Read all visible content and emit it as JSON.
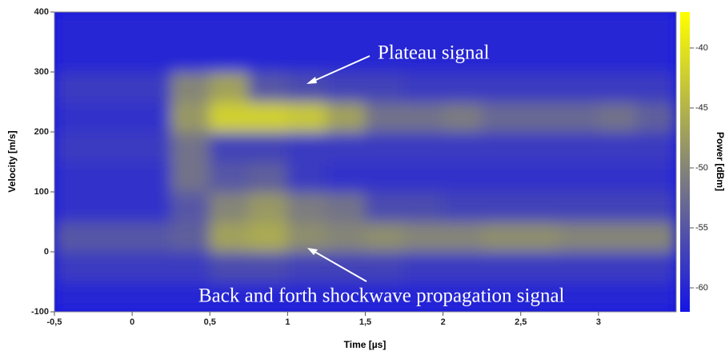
{
  "chart_data": {
    "type": "heatmap",
    "xlabel": "Time [µs]",
    "ylabel": "Velocity [m/s]",
    "colorbar_label": "Power [dBm]",
    "annotations": [
      "Plateau signal",
      "Back and forth shockwave propagation signal"
    ],
    "xlim": [
      -0.5,
      3.5
    ],
    "ylim": [
      -100,
      400
    ],
    "xticks": [
      {
        "value": -0.5,
        "label": "-0,5"
      },
      0,
      {
        "value": 0.5,
        "label": "0,5"
      },
      1,
      {
        "value": 1.5,
        "label": "1,5"
      },
      2,
      {
        "value": 2.5,
        "label": "2,5"
      },
      3
    ],
    "yticks": [
      -100,
      0,
      100,
      200,
      300,
      400
    ],
    "colorbar_lim": [
      -62,
      -37
    ],
    "colorbar_ticks": [
      -40,
      -45,
      -50,
      -55,
      -60
    ],
    "colors": [
      "#1414e6",
      "#ffff00"
    ],
    "xbins": [
      -0.5,
      -0.25,
      0,
      0.25,
      0.5,
      0.75,
      1,
      1.25,
      1.5,
      1.75,
      2,
      2.25,
      2.5,
      2.75,
      3,
      3.25,
      3.5
    ],
    "ybins": [
      -100,
      -50,
      0,
      50,
      100,
      150,
      200,
      250,
      300,
      350,
      400
    ],
    "values": [
      [
        -60,
        -60,
        -60,
        -60,
        -60,
        -60,
        -60,
        -60,
        -60,
        -60,
        -60,
        -60,
        -60,
        -60,
        -60,
        -60
      ],
      [
        -58,
        -58,
        -58,
        -58,
        -56,
        -56,
        -57,
        -57,
        -57,
        -58,
        -58,
        -58,
        -58,
        -58,
        -58,
        -58
      ],
      [
        -55,
        -55,
        -55,
        -54,
        -47,
        -46,
        -49,
        -50,
        -49,
        -50,
        -50,
        -49,
        -49,
        -50,
        -50,
        -50
      ],
      [
        -59,
        -59,
        -59,
        -55,
        -50,
        -48,
        -51,
        -52,
        -56,
        -56,
        -57,
        -57,
        -57,
        -57,
        -57,
        -57
      ],
      [
        -59,
        -59,
        -59,
        -52,
        -55,
        -54,
        -58,
        -59,
        -59,
        -59,
        -59,
        -59,
        -59,
        -59,
        -59,
        -59
      ],
      [
        -58,
        -58,
        -58,
        -52,
        -57,
        -57,
        -58,
        -58,
        -58,
        -58,
        -58,
        -58,
        -58,
        -58,
        -58,
        -58
      ],
      [
        -59,
        -59,
        -59,
        -48,
        -42,
        -42,
        -43,
        -47,
        -52,
        -52,
        -51,
        -53,
        -53,
        -53,
        -52,
        -54
      ],
      [
        -58,
        -58,
        -58,
        -50,
        -47,
        -55,
        -56,
        -57,
        -57,
        -58,
        -58,
        -58,
        -58,
        -58,
        -58,
        -58
      ],
      [
        -60,
        -60,
        -60,
        -60,
        -60,
        -60,
        -60,
        -60,
        -60,
        -60,
        -60,
        -60,
        -60,
        -60,
        -60,
        -60
      ],
      [
        -60,
        -60,
        -60,
        -60,
        -60,
        -60,
        -60,
        -60,
        -60,
        -60,
        -60,
        -60,
        -60,
        -60,
        -60,
        -60
      ]
    ]
  }
}
